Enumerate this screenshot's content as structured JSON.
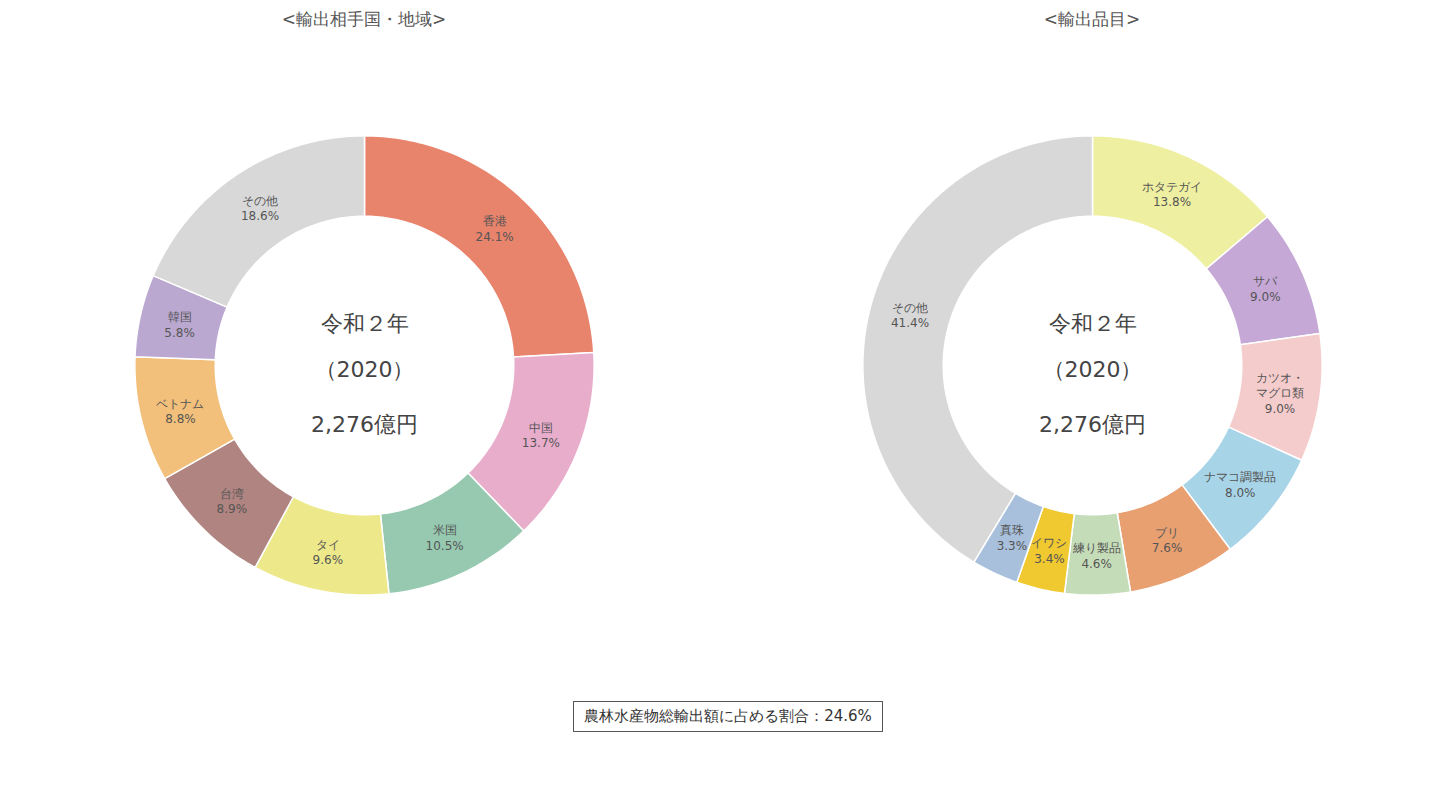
{
  "chart_data": [
    {
      "type": "pie",
      "title": "<輸出相手国・地域>",
      "categories": [
        "香港",
        "中国",
        "米国",
        "タイ",
        "台湾",
        "ベトナム",
        "韓国",
        "その他"
      ],
      "values": [
        24.1,
        13.7,
        10.5,
        9.6,
        8.9,
        8.8,
        5.8,
        18.6
      ],
      "value_labels": [
        "24.1%",
        "13.7%",
        "10.5%",
        "9.6%",
        "8.9%",
        "8.8%",
        "5.8%",
        "18.6%"
      ],
      "colors": [
        "#E8836C",
        "#E9ADCC",
        "#96C9B0",
        "#EDE98A",
        "#B08480",
        "#F2C07A",
        "#BBA8D0",
        "#D8D8D8"
      ],
      "data_labels": true,
      "annotations": [
        "令和２年",
        "（2020）",
        "2,276億円"
      ]
    },
    {
      "type": "pie",
      "title": "<輸出品目>",
      "categories": [
        "ホタテガイ",
        "サバ",
        "カツオ・\nマグロ類",
        "ナマコ調製品",
        "ブリ",
        "練り製品",
        "イワシ",
        "真珠",
        "その他"
      ],
      "values": [
        13.8,
        9.0,
        9.0,
        8.0,
        7.6,
        4.6,
        3.4,
        3.3,
        41.4
      ],
      "value_labels": [
        "13.8%",
        "9.0%",
        "9.0%",
        "8.0%",
        "7.6%",
        "4.6%",
        "3.4%",
        "3.3%",
        "41.4%"
      ],
      "colors": [
        "#EEEFA0",
        "#C5A8D5",
        "#F5CCCC",
        "#A8D4E8",
        "#E8A070",
        "#C5DCB8",
        "#F0C830",
        "#A8C0DC",
        "#D8D8D8"
      ],
      "data_labels": true,
      "annotations": [
        "令和２年",
        "（2020）",
        "2,276億円"
      ]
    }
  ],
  "annotations": [
    "農林水産物総輸出額に占める割合：24.6%"
  ]
}
